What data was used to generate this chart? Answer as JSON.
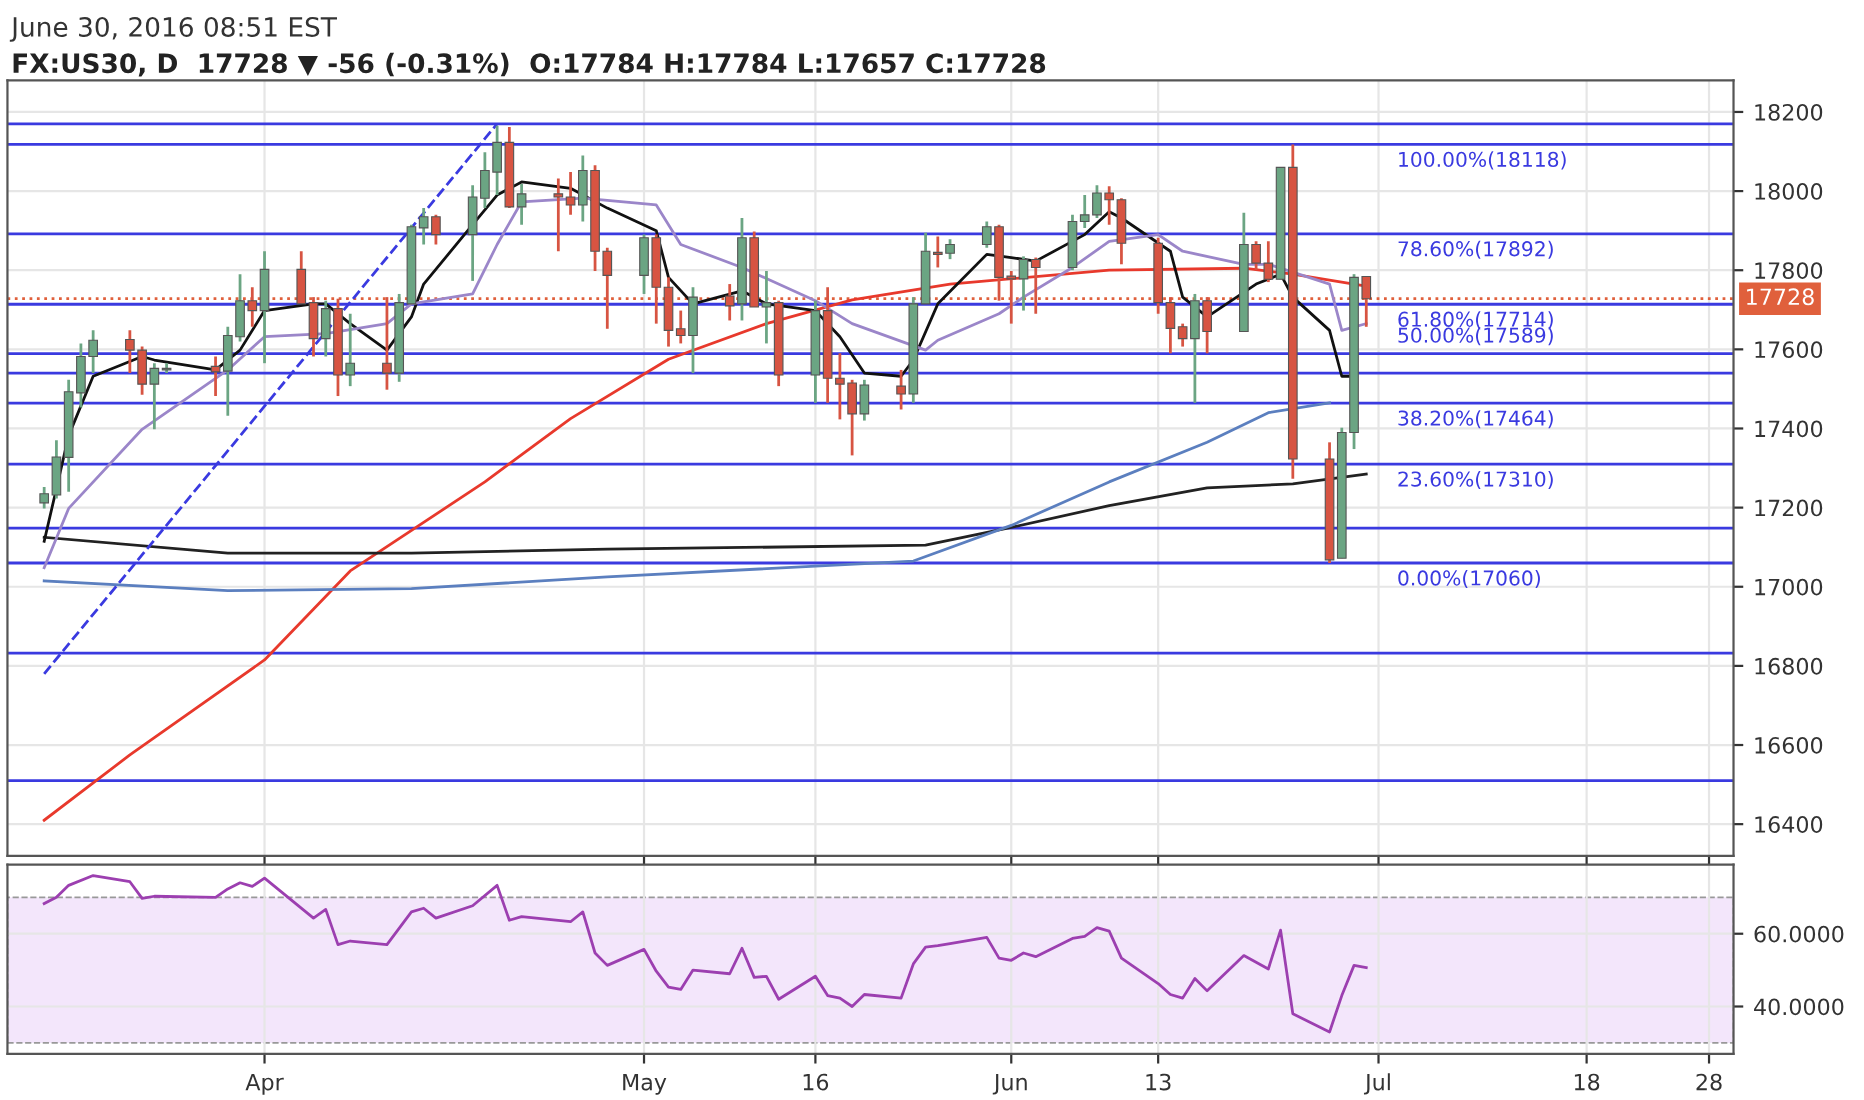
{
  "chart_data": [
    {
      "type": "candlestick",
      "subtitle": "June 30, 2016 08:51 EST",
      "title": "FX:US30, D  17728 ▼ -56 (-0.31%)  O:17784 H:17784 L:17657 C:17728",
      "x": [
        "2016-03-14",
        "2016-03-15",
        "2016-03-16",
        "2016-03-17",
        "2016-03-18",
        "2016-03-21",
        "2016-03-22",
        "2016-03-23",
        "2016-03-24",
        "2016-03-28",
        "2016-03-29",
        "2016-03-30",
        "2016-03-31",
        "2016-04-01",
        "2016-04-04",
        "2016-04-05",
        "2016-04-06",
        "2016-04-07",
        "2016-04-08",
        "2016-04-11",
        "2016-04-12",
        "2016-04-13",
        "2016-04-14",
        "2016-04-15",
        "2016-04-18",
        "2016-04-19",
        "2016-04-20",
        "2016-04-21",
        "2016-04-22",
        "2016-04-25",
        "2016-04-26",
        "2016-04-27",
        "2016-04-28",
        "2016-04-29",
        "2016-05-02",
        "2016-05-03",
        "2016-05-04",
        "2016-05-05",
        "2016-05-06",
        "2016-05-09",
        "2016-05-10",
        "2016-05-11",
        "2016-05-12",
        "2016-05-13",
        "2016-05-16",
        "2016-05-17",
        "2016-05-18",
        "2016-05-19",
        "2016-05-20",
        "2016-05-23",
        "2016-05-24",
        "2016-05-25",
        "2016-05-26",
        "2016-05-27",
        "2016-05-30",
        "2016-05-31",
        "2016-06-01",
        "2016-06-02",
        "2016-06-03",
        "2016-06-06",
        "2016-06-07",
        "2016-06-08",
        "2016-06-09",
        "2016-06-10",
        "2016-06-13",
        "2016-06-14",
        "2016-06-15",
        "2016-06-16",
        "2016-06-17",
        "2016-06-20",
        "2016-06-21",
        "2016-06-22",
        "2016-06-23",
        "2016-06-24",
        "2016-06-27",
        "2016-06-28",
        "2016-06-29",
        "2016-06-30"
      ],
      "ohlc": [
        [
          17212,
          17252,
          17198,
          17235
        ],
        [
          17232,
          17370,
          17223,
          17328
        ],
        [
          17327,
          17523,
          17240,
          17493
        ],
        [
          17490,
          17615,
          17453,
          17582
        ],
        [
          17582,
          17648,
          17540,
          17623
        ],
        [
          17625,
          17648,
          17540,
          17598
        ],
        [
          17598,
          17607,
          17485,
          17512
        ],
        [
          17512,
          17565,
          17398,
          17552
        ],
        [
          17548,
          17565,
          17540,
          17552
        ],
        [
          17557,
          17582,
          17482,
          17543
        ],
        [
          17545,
          17657,
          17432,
          17635
        ],
        [
          17632,
          17790,
          17620,
          17723
        ],
        [
          17723,
          17757,
          17657,
          17698
        ],
        [
          17698,
          17848,
          17565,
          17802
        ],
        [
          17802,
          17848,
          17715,
          17715
        ],
        [
          17718,
          17732,
          17582,
          17627
        ],
        [
          17627,
          17723,
          17582,
          17703
        ],
        [
          17703,
          17728,
          17482,
          17535
        ],
        [
          17535,
          17690,
          17507,
          17565
        ],
        [
          17565,
          17732,
          17498,
          17540
        ],
        [
          17540,
          17740,
          17518,
          17718
        ],
        [
          17715,
          17915,
          17715,
          17910
        ],
        [
          17907,
          17957,
          17865,
          17935
        ],
        [
          17935,
          17940,
          17865,
          17890
        ],
        [
          17890,
          18015,
          17773,
          17985
        ],
        [
          17982,
          18098,
          17957,
          18052
        ],
        [
          18048,
          18165,
          17990,
          18123
        ],
        [
          18123,
          18162,
          17957,
          17960
        ],
        [
          17960,
          18018,
          17915,
          17993
        ],
        [
          17993,
          18032,
          17848,
          17985
        ],
        [
          17985,
          18048,
          17940,
          17965
        ],
        [
          17965,
          18090,
          17923,
          18052
        ],
        [
          18052,
          18065,
          17798,
          17848
        ],
        [
          17848,
          17857,
          17652,
          17787
        ],
        [
          17787,
          17890,
          17740,
          17882
        ],
        [
          17882,
          17890,
          17665,
          17757
        ],
        [
          17757,
          17782,
          17607,
          17648
        ],
        [
          17652,
          17698,
          17615,
          17635
        ],
        [
          17635,
          17757,
          17540,
          17732
        ],
        [
          17735,
          17765,
          17673,
          17710
        ],
        [
          17715,
          17932,
          17673,
          17882
        ],
        [
          17882,
          17898,
          17707,
          17707
        ],
        [
          17707,
          17798,
          17615,
          17718
        ],
        [
          17718,
          17723,
          17507,
          17535
        ],
        [
          17535,
          17723,
          17465,
          17698
        ],
        [
          17698,
          17757,
          17465,
          17527
        ],
        [
          17527,
          17590,
          17423,
          17512
        ],
        [
          17515,
          17523,
          17332,
          17437
        ],
        [
          17437,
          17523,
          17420,
          17510
        ],
        [
          17507,
          17548,
          17448,
          17487
        ],
        [
          17487,
          17732,
          17465,
          17715
        ],
        [
          17715,
          17895,
          17715,
          17848
        ],
        [
          17845,
          17885,
          17807,
          17840
        ],
        [
          17843,
          17878,
          17828,
          17865
        ],
        [
          17865,
          17923,
          17857,
          17910
        ],
        [
          17910,
          17915,
          17723,
          17782
        ],
        [
          17785,
          17798,
          17665,
          17778
        ],
        [
          17778,
          17835,
          17698,
          17827
        ],
        [
          17827,
          17832,
          17690,
          17807
        ],
        [
          17807,
          17940,
          17800,
          17923
        ],
        [
          17923,
          17990,
          17907,
          17940
        ],
        [
          17940,
          18015,
          17932,
          17995
        ],
        [
          17995,
          18012,
          17915,
          17978
        ],
        [
          17978,
          17982,
          17815,
          17868
        ],
        [
          17868,
          17882,
          17690,
          17718
        ],
        [
          17718,
          17732,
          17590,
          17653
        ],
        [
          17657,
          17665,
          17607,
          17627
        ],
        [
          17627,
          17740,
          17465,
          17723
        ],
        [
          17723,
          17732,
          17590,
          17645
        ],
        [
          17645,
          17945,
          17645,
          17865
        ],
        [
          17865,
          17873,
          17800,
          17818
        ],
        [
          17818,
          17873,
          17770,
          17777
        ],
        [
          17777,
          18060,
          17777,
          18060
        ],
        [
          18060,
          18118,
          17273,
          17323
        ],
        [
          17323,
          17365,
          17060,
          17068
        ],
        [
          17072,
          17402,
          17072,
          17390
        ],
        [
          17390,
          17790,
          17348,
          17782
        ],
        [
          17784,
          17784,
          17657,
          17728
        ]
      ],
      "colors": [
        "#6ba583",
        "#6ba583",
        "#6ba583",
        "#6ba583",
        "#6ba583",
        "#d75442",
        "#d75442",
        "#6ba583",
        "#6ba583",
        "#d75442",
        "#6ba583",
        "#6ba583",
        "#d75442",
        "#6ba583",
        "#d75442",
        "#d75442",
        "#6ba583",
        "#d75442",
        "#6ba583",
        "#d75442",
        "#6ba583",
        "#6ba583",
        "#6ba583",
        "#d75442",
        "#6ba583",
        "#6ba583",
        "#6ba583",
        "#d75442",
        "#6ba583",
        "#d75442",
        "#d75442",
        "#6ba583",
        "#d75442",
        "#d75442",
        "#6ba583",
        "#d75442",
        "#d75442",
        "#d75442",
        "#6ba583",
        "#d75442",
        "#6ba583",
        "#d75442",
        "#6ba583",
        "#d75442",
        "#6ba583",
        "#d75442",
        "#d75442",
        "#d75442",
        "#6ba583",
        "#d75442",
        "#6ba583",
        "#6ba583",
        "#d75442",
        "#6ba583",
        "#6ba583",
        "#d75442",
        "#d75442",
        "#6ba583",
        "#d75442",
        "#6ba583",
        "#6ba583",
        "#6ba583",
        "#d75442",
        "#d75442",
        "#d75442",
        "#d75442",
        "#d75442",
        "#6ba583",
        "#d75442",
        "#6ba583",
        "#d75442",
        "#d75442",
        "#6ba583",
        "#d75442",
        "#d75442",
        "#6ba583",
        "#6ba583",
        "#d75442"
      ],
      "series": [
        {
          "type": "line",
          "color": "#e8392c",
          "x": [
            "2016-03-14",
            "2016-03-21",
            "2016-04-01",
            "2016-04-08",
            "2016-04-19",
            "2016-04-26",
            "2016-05-04",
            "2016-05-12",
            "2016-05-19",
            "2016-05-27",
            "2016-06-09",
            "2016-06-20",
            "2016-06-24",
            "2016-06-30"
          ],
          "values": [
            16410,
            16575,
            16815,
            17040,
            17265,
            17425,
            17575,
            17665,
            17725,
            17765,
            17800,
            17805,
            17790,
            17760
          ]
        },
        {
          "type": "line",
          "color": "#222222",
          "x": [
            "2016-03-14",
            "2016-03-29",
            "2016-04-13",
            "2016-04-29",
            "2016-05-25",
            "2016-06-01",
            "2016-06-09",
            "2016-06-17",
            "2016-06-24",
            "2016-06-30"
          ],
          "values": [
            17125,
            17085,
            17085,
            17095,
            17105,
            17150,
            17205,
            17250,
            17260,
            17285
          ]
        },
        {
          "type": "line",
          "color": "#5b7fbf",
          "x": [
            "2016-03-14",
            "2016-03-29",
            "2016-04-13",
            "2016-04-29",
            "2016-05-24",
            "2016-06-01",
            "2016-06-09",
            "2016-06-17",
            "2016-06-22",
            "2016-06-27"
          ],
          "values": [
            17015,
            16990,
            16995,
            17025,
            17065,
            17155,
            17265,
            17365,
            17440,
            17465
          ]
        },
        {
          "type": "line",
          "color": "#111111",
          "x": [
            "2016-03-14",
            "2016-03-15",
            "2016-03-16",
            "2016-03-18",
            "2016-03-22",
            "2016-03-23",
            "2016-03-28",
            "2016-03-30",
            "2016-04-01",
            "2016-04-05",
            "2016-04-06",
            "2016-04-08",
            "2016-04-11",
            "2016-04-13",
            "2016-04-14",
            "2016-04-18",
            "2016-04-20",
            "2016-04-22",
            "2016-04-26",
            "2016-04-29",
            "2016-05-03",
            "2016-05-04",
            "2016-05-06",
            "2016-05-10",
            "2016-05-12",
            "2016-05-16",
            "2016-05-18",
            "2016-05-20",
            "2016-05-23",
            "2016-05-24",
            "2016-05-26",
            "2016-05-30",
            "2016-06-01",
            "2016-06-03",
            "2016-06-07",
            "2016-06-09",
            "2016-06-10",
            "2016-06-14",
            "2016-06-15",
            "2016-06-17",
            "2016-06-21",
            "2016-06-23",
            "2016-06-24",
            "2016-06-27",
            "2016-06-28",
            "2016-06-29"
          ],
          "values": [
            17115,
            17248,
            17382,
            17532,
            17582,
            17573,
            17548,
            17598,
            17698,
            17715,
            17715,
            17665,
            17598,
            17682,
            17765,
            17915,
            17990,
            18023,
            18007,
            17957,
            17900,
            17782,
            17715,
            17748,
            17715,
            17698,
            17632,
            17540,
            17532,
            17573,
            17715,
            17840,
            17832,
            17823,
            17890,
            17948,
            17932,
            17848,
            17732,
            17682,
            17765,
            17790,
            17732,
            17648,
            17532,
            17532
          ]
        },
        {
          "type": "line",
          "color": "#9b86c9",
          "x": [
            "2016-03-14",
            "2016-03-16",
            "2016-03-22",
            "2016-03-29",
            "2016-04-01",
            "2016-04-06",
            "2016-04-11",
            "2016-04-13",
            "2016-04-18",
            "2016-04-20",
            "2016-04-22",
            "2016-04-27",
            "2016-05-03",
            "2016-05-05",
            "2016-05-10",
            "2016-05-16",
            "2016-05-19",
            "2016-05-25",
            "2016-05-26",
            "2016-05-31",
            "2016-06-02",
            "2016-06-06",
            "2016-06-09",
            "2016-06-13",
            "2016-06-15",
            "2016-06-20",
            "2016-06-22",
            "2016-06-27",
            "2016-06-28",
            "2016-06-30"
          ],
          "values": [
            17048,
            17198,
            17398,
            17548,
            17632,
            17640,
            17665,
            17715,
            17740,
            17865,
            17973,
            17982,
            17965,
            17865,
            17807,
            17723,
            17665,
            17598,
            17623,
            17690,
            17732,
            17807,
            17873,
            17890,
            17848,
            17815,
            17815,
            17765,
            17648,
            17665
          ]
        },
        {
          "type": "line",
          "color": "#3a3ae0",
          "line_style": "dashed",
          "x": [
            "2016-03-14",
            "2016-04-20"
          ],
          "values": [
            16780,
            18170
          ]
        }
      ],
      "ref_lines": [
        {
          "axis": "y",
          "value": 18170,
          "color": "#3a3ae0"
        },
        {
          "axis": "y",
          "value": 17540,
          "color": "#3a3ae0"
        },
        {
          "axis": "y",
          "value": 17148,
          "color": "#3a3ae0"
        },
        {
          "axis": "y",
          "value": 16832,
          "color": "#3a3ae0"
        },
        {
          "axis": "y",
          "value": 16510,
          "color": "#3a3ae0"
        },
        {
          "axis": "y",
          "value": 18118,
          "label": "100.00%(18118)",
          "color": "#3a3ae0"
        },
        {
          "axis": "y",
          "value": 17892,
          "label": "78.60%(17892)",
          "color": "#3a3ae0"
        },
        {
          "axis": "y",
          "value": 17714,
          "label": "61.80%(17714)",
          "color": "#3a3ae0"
        },
        {
          "axis": "y",
          "value": 17589,
          "label": "50.00%(17589)",
          "color": "#3a3ae0"
        },
        {
          "axis": "y",
          "value": 17464,
          "label": "38.20%(17464)",
          "color": "#3a3ae0"
        },
        {
          "axis": "y",
          "value": 17310,
          "label": "23.60%(17310)",
          "color": "#3a3ae0"
        },
        {
          "axis": "y",
          "value": 17060,
          "label": "0.00%(17060)",
          "color": "#3a3ae0"
        },
        {
          "axis": "y",
          "value": 17728,
          "label": "17728",
          "color": "#e0603c",
          "line_style": "dotted"
        }
      ],
      "xlim": [
        "2016-03-11",
        "2016-07-30"
      ],
      "xticks": [
        {
          "value": "2016-04-01",
          "label": null
        },
        {
          "value": "2016-05-02",
          "label": null
        },
        {
          "value": "2016-05-16",
          "label": null
        },
        {
          "value": "2016-06-01",
          "label": null
        },
        {
          "value": "2016-06-13",
          "label": null
        },
        {
          "value": "2016-07-01",
          "label": null
        },
        {
          "value": "2016-07-18",
          "label": null
        },
        {
          "value": "2016-07-28",
          "label": null
        }
      ],
      "ylim": [
        16320,
        18280
      ],
      "yticks": [
        16400,
        16600,
        16800,
        17000,
        17200,
        17400,
        17600,
        17800,
        18000,
        18200
      ],
      "tick_labels": "y",
      "grid": true,
      "legend": false
    },
    {
      "type": "line",
      "series": [
        {
          "color": "#9c3fb0",
          "x": [
            "2016-03-14",
            "2016-03-15",
            "2016-03-16",
            "2016-03-18",
            "2016-03-21",
            "2016-03-22",
            "2016-03-23",
            "2016-03-28",
            "2016-03-29",
            "2016-03-30",
            "2016-03-31",
            "2016-04-01",
            "2016-04-05",
            "2016-04-06",
            "2016-04-07",
            "2016-04-08",
            "2016-04-11",
            "2016-04-13",
            "2016-04-14",
            "2016-04-15",
            "2016-04-18",
            "2016-04-20",
            "2016-04-21",
            "2016-04-22",
            "2016-04-26",
            "2016-04-27",
            "2016-04-28",
            "2016-04-29",
            "2016-05-02",
            "2016-05-03",
            "2016-05-04",
            "2016-05-05",
            "2016-05-06",
            "2016-05-09",
            "2016-05-10",
            "2016-05-11",
            "2016-05-12",
            "2016-05-13",
            "2016-05-16",
            "2016-05-17",
            "2016-05-18",
            "2016-05-19",
            "2016-05-20",
            "2016-05-23",
            "2016-05-24",
            "2016-05-25",
            "2016-05-26",
            "2016-05-27",
            "2016-05-30",
            "2016-05-31",
            "2016-06-01",
            "2016-06-02",
            "2016-06-03",
            "2016-06-06",
            "2016-06-07",
            "2016-06-08",
            "2016-06-09",
            "2016-06-10",
            "2016-06-13",
            "2016-06-14",
            "2016-06-15",
            "2016-06-16",
            "2016-06-17",
            "2016-06-20",
            "2016-06-22",
            "2016-06-23",
            "2016-06-24",
            "2016-06-27",
            "2016-06-28",
            "2016-06-29",
            "2016-06-30"
          ],
          "values": [
            68.3,
            70,
            73.3,
            76,
            74.3,
            69.7,
            70.3,
            70,
            72.3,
            74,
            73,
            75.3,
            64.3,
            66.7,
            57,
            58,
            57,
            66,
            67,
            64.3,
            67.7,
            73.3,
            63.7,
            64.7,
            63.3,
            66,
            54.7,
            51.3,
            55.7,
            49.7,
            45.3,
            44.7,
            50,
            49,
            56,
            48,
            48.3,
            42,
            48.3,
            43,
            42.3,
            40,
            43.3,
            42.3,
            51.7,
            56.3,
            56.7,
            57.3,
            59,
            53.3,
            52.7,
            54.7,
            53.7,
            58.7,
            59.3,
            61.7,
            60.7,
            53.3,
            46.3,
            43.3,
            42.3,
            47.7,
            44.3,
            54,
            50.3,
            61,
            38,
            33,
            43,
            51.3,
            50.7
          ]
        }
      ],
      "bands": [
        {
          "axis": "y",
          "from": 30,
          "to": 70,
          "color": "#f3e6fb"
        }
      ],
      "xlim": [
        "2016-03-11",
        "2016-07-30"
      ],
      "xticks": [
        {
          "value": "2016-04-01",
          "label": "Apr"
        },
        {
          "value": "2016-05-02",
          "label": "May"
        },
        {
          "value": "2016-05-16",
          "label": "16"
        },
        {
          "value": "2016-06-01",
          "label": "Jun"
        },
        {
          "value": "2016-06-13",
          "label": "13"
        },
        {
          "value": "2016-07-01",
          "label": "Jul"
        },
        {
          "value": "2016-07-18",
          "label": "18"
        },
        {
          "value": "2016-07-28",
          "label": "28"
        }
      ],
      "ylim": [
        27,
        79
      ],
      "yticks": [
        {
          "value": 40,
          "label": "40.0000"
        },
        {
          "value": 60,
          "label": "60.0000"
        }
      ],
      "grid": true,
      "marker": "none",
      "legend": false
    }
  ]
}
